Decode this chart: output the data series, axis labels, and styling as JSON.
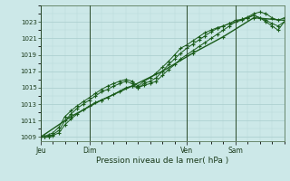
{
  "title": "Pression niveau de la mer( hPa )",
  "bg_color": "#cce8e8",
  "grid_color_major": "#a8cccc",
  "grid_color_minor": "#b8d8d8",
  "line_color": "#1a5c1a",
  "ylim": [
    1008.5,
    1025.0
  ],
  "yticks": [
    1009,
    1011,
    1013,
    1015,
    1017,
    1019,
    1021,
    1023
  ],
  "day_labels": [
    "Jeu",
    "Dim",
    "Ven",
    "Sam"
  ],
  "day_positions": [
    0,
    48,
    144,
    192
  ],
  "total_hours": 240,
  "series1_x": [
    0,
    4,
    8,
    12,
    18,
    24,
    30,
    36,
    42,
    48,
    54,
    60,
    66,
    72,
    78,
    84,
    90,
    96,
    102,
    108,
    114,
    120,
    126,
    132,
    138,
    144,
    150,
    156,
    162,
    168,
    174,
    180,
    186,
    192,
    198,
    204,
    210,
    216,
    222,
    228,
    234,
    240
  ],
  "series1_y": [
    1009.0,
    1009.0,
    1009.1,
    1009.2,
    1009.5,
    1010.5,
    1011.2,
    1011.8,
    1012.3,
    1012.8,
    1013.2,
    1013.5,
    1013.8,
    1014.2,
    1014.6,
    1015.0,
    1015.2,
    1015.0,
    1015.3,
    1015.5,
    1015.8,
    1016.5,
    1017.2,
    1017.8,
    1018.5,
    1019.0,
    1019.5,
    1020.0,
    1020.5,
    1021.0,
    1021.5,
    1022.0,
    1022.5,
    1023.0,
    1023.3,
    1023.6,
    1024.0,
    1024.2,
    1024.0,
    1023.5,
    1023.2,
    1023.5
  ],
  "series2_x": [
    0,
    4,
    8,
    12,
    18,
    24,
    30,
    36,
    42,
    48,
    54,
    60,
    66,
    72,
    78,
    84,
    90,
    96,
    102,
    108,
    114,
    120,
    126,
    132,
    138,
    144,
    150,
    156,
    162,
    168,
    174,
    180,
    186,
    192,
    198,
    204,
    210,
    216,
    222,
    228,
    234,
    240
  ],
  "series2_y": [
    1009.0,
    1009.0,
    1009.1,
    1009.3,
    1009.8,
    1011.0,
    1011.8,
    1012.5,
    1013.0,
    1013.5,
    1014.0,
    1014.5,
    1014.8,
    1015.2,
    1015.5,
    1015.8,
    1015.5,
    1015.0,
    1015.5,
    1015.8,
    1016.2,
    1017.0,
    1017.8,
    1018.5,
    1019.2,
    1019.8,
    1020.3,
    1020.8,
    1021.3,
    1021.8,
    1022.2,
    1022.5,
    1022.8,
    1023.2,
    1023.3,
    1023.5,
    1023.8,
    1023.5,
    1023.2,
    1022.8,
    1022.5,
    1023.0
  ],
  "series3_x": [
    0,
    4,
    8,
    12,
    18,
    24,
    30,
    36,
    42,
    48,
    54,
    60,
    66,
    72,
    78,
    84,
    90,
    96,
    102,
    108,
    114,
    120,
    126,
    132,
    138,
    144,
    150,
    156,
    162,
    168,
    174,
    180,
    186,
    192,
    198,
    204,
    210,
    216,
    222,
    228,
    234,
    240
  ],
  "series3_y": [
    1009.0,
    1009.1,
    1009.3,
    1009.5,
    1010.2,
    1011.5,
    1012.2,
    1012.8,
    1013.3,
    1013.8,
    1014.3,
    1014.8,
    1015.2,
    1015.5,
    1015.8,
    1016.0,
    1015.8,
    1015.2,
    1015.8,
    1016.2,
    1016.8,
    1017.5,
    1018.2,
    1019.0,
    1019.8,
    1020.2,
    1020.7,
    1021.2,
    1021.7,
    1022.0,
    1022.3,
    1022.5,
    1022.8,
    1023.0,
    1023.2,
    1023.5,
    1023.8,
    1023.5,
    1023.0,
    1022.5,
    1022.0,
    1023.0
  ],
  "series4_x": [
    0,
    30,
    60,
    90,
    120,
    150,
    180,
    210,
    240
  ],
  "series4_y": [
    1009.0,
    1011.5,
    1013.5,
    1015.2,
    1017.0,
    1019.2,
    1021.2,
    1023.5,
    1023.2
  ]
}
